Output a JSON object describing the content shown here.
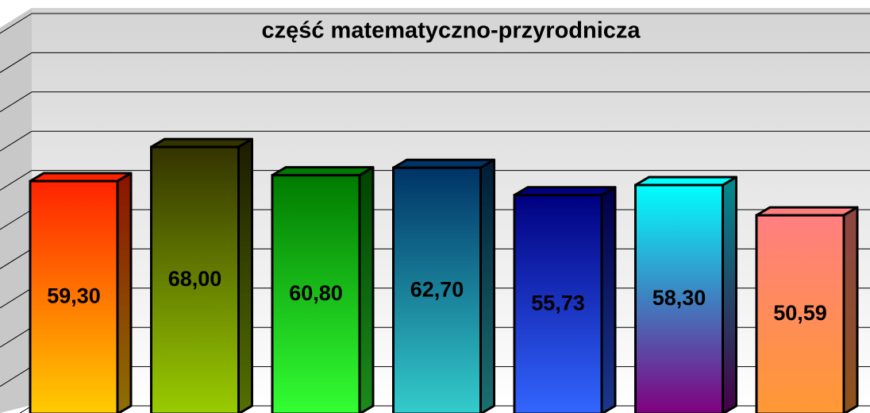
{
  "chart_data": {
    "type": "bar3d",
    "title": "część matematyczno-przyrodnicza",
    "values": [
      59.3,
      68.0,
      60.8,
      62.7,
      55.73,
      58.3,
      50.59
    ],
    "value_labels": [
      "59,30",
      "68,00",
      "60,80",
      "62,70",
      "55,73",
      "58,30",
      "50,59"
    ],
    "colors": [
      [
        "#ff2200",
        "#ffcc00"
      ],
      [
        "#333300",
        "#99cc00"
      ],
      [
        "#007a00",
        "#33ff33"
      ],
      [
        "#003366",
        "#33cccc"
      ],
      [
        "#000080",
        "#3366ff"
      ],
      [
        "#00ffff",
        "#800080"
      ],
      [
        "#ff7f80",
        "#ff9933"
      ]
    ],
    "ylim": [
      0,
      100
    ],
    "yticks": [
      0,
      10,
      20,
      30,
      40,
      50,
      60,
      70,
      80,
      90,
      100
    ],
    "grid": true
  }
}
